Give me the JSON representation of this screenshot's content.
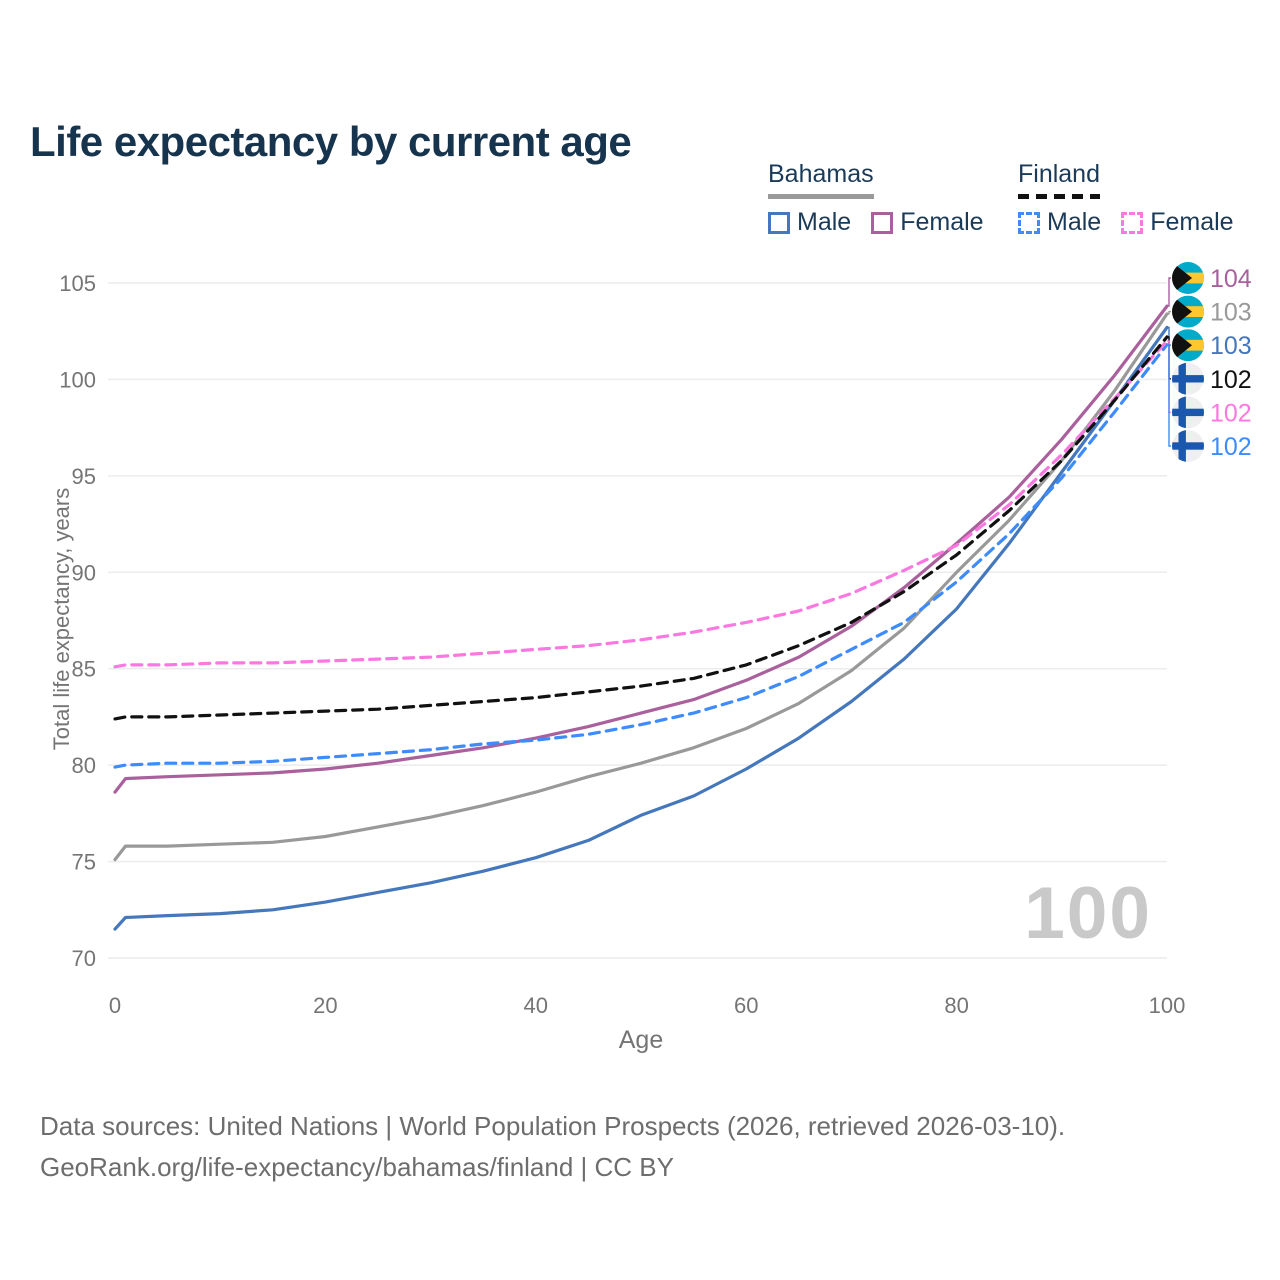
{
  "page": {
    "title": "Life expectancy by current age",
    "watermark_age": "100"
  },
  "legend": {
    "groups": [
      {
        "country": "Bahamas",
        "line_style": "solid",
        "underline_color": "#9a9a9a",
        "items": [
          {
            "label": "Male",
            "color": "#4477bb"
          },
          {
            "label": "Female",
            "color": "#a9609c"
          }
        ]
      },
      {
        "country": "Finland",
        "line_style": "dashed",
        "underline_color": "#111111",
        "items": [
          {
            "label": "Male",
            "color": "#3d8bfd"
          },
          {
            "label": "Female",
            "color": "#fa78e0"
          }
        ]
      }
    ]
  },
  "axes": {
    "y_title": "Total life expectancy, years",
    "x_title": "Age",
    "y_ticks": [
      70,
      75,
      80,
      85,
      90,
      95,
      100,
      105
    ],
    "x_ticks": [
      0,
      20,
      40,
      60,
      80,
      100
    ]
  },
  "chart_data": {
    "type": "line",
    "title": "Life expectancy by current age",
    "xlabel": "Age",
    "ylabel": "Total life expectancy, years",
    "xlim": [
      0,
      100
    ],
    "ylim": [
      70,
      105
    ],
    "grid": "horizontal",
    "legend_position": "top-right",
    "x": [
      0,
      1,
      5,
      10,
      15,
      20,
      25,
      30,
      35,
      40,
      45,
      50,
      55,
      60,
      65,
      70,
      75,
      80,
      85,
      90,
      95,
      100
    ],
    "series": [
      {
        "name": "Bahamas Both sexes",
        "country": "Bahamas",
        "group": "Both sexes",
        "color": "#999999",
        "dash": "solid",
        "values": [
          75.1,
          75.8,
          75.8,
          75.9,
          76.0,
          76.3,
          76.8,
          77.3,
          77.9,
          78.6,
          79.4,
          80.1,
          80.9,
          81.9,
          83.2,
          84.9,
          87.1,
          90.0,
          92.7,
          95.8,
          99.4,
          103.4
        ]
      },
      {
        "name": "Bahamas Male",
        "country": "Bahamas",
        "group": "Male",
        "color": "#4477bb",
        "dash": "solid",
        "values": [
          71.5,
          72.1,
          72.2,
          72.3,
          72.5,
          72.9,
          73.4,
          73.9,
          74.5,
          75.2,
          76.1,
          77.4,
          78.4,
          79.8,
          81.4,
          83.3,
          85.5,
          88.1,
          91.5,
          95.2,
          98.9,
          102.7
        ]
      },
      {
        "name": "Bahamas Female",
        "country": "Bahamas",
        "group": "Female",
        "color": "#a9609c",
        "dash": "solid",
        "values": [
          78.6,
          79.3,
          79.4,
          79.5,
          79.6,
          79.8,
          80.1,
          80.5,
          80.9,
          81.4,
          82.0,
          82.7,
          83.4,
          84.4,
          85.6,
          87.2,
          89.2,
          91.5,
          93.9,
          96.9,
          100.2,
          103.8
        ]
      },
      {
        "name": "Finland Male",
        "country": "Finland",
        "group": "Male",
        "color": "#3d8bfd",
        "dash": "dashed",
        "values": [
          79.9,
          80.0,
          80.1,
          80.1,
          80.2,
          80.4,
          80.6,
          80.8,
          81.1,
          81.3,
          81.6,
          82.1,
          82.7,
          83.5,
          84.6,
          86.0,
          87.4,
          89.5,
          92.0,
          94.9,
          98.3,
          101.8
        ]
      },
      {
        "name": "Finland Female",
        "country": "Finland",
        "group": "Female",
        "color": "#fa78e0",
        "dash": "dashed",
        "values": [
          85.1,
          85.2,
          85.2,
          85.3,
          85.3,
          85.4,
          85.5,
          85.6,
          85.8,
          86.0,
          86.2,
          86.5,
          86.9,
          87.4,
          88.0,
          88.9,
          90.1,
          91.4,
          93.5,
          96.1,
          99.0,
          102.0
        ]
      },
      {
        "name": "Finland Both sexes",
        "country": "Finland",
        "group": "Both sexes",
        "color": "#111111",
        "dash": "dashed",
        "values": [
          82.4,
          82.5,
          82.5,
          82.6,
          82.7,
          82.8,
          82.9,
          83.1,
          83.3,
          83.5,
          83.8,
          84.1,
          84.5,
          85.2,
          86.2,
          87.4,
          89.0,
          90.9,
          93.2,
          95.8,
          98.9,
          102.2
        ]
      }
    ],
    "end_value_labels": [
      {
        "text": "104",
        "series": "Bahamas Female",
        "flag": "bahamas",
        "color": "#a9609c"
      },
      {
        "text": "103",
        "series": "Bahamas Both sexes",
        "flag": "bahamas",
        "color": "#999999"
      },
      {
        "text": "103",
        "series": "Bahamas Male",
        "flag": "bahamas",
        "color": "#4477bb"
      },
      {
        "text": "102",
        "series": "Finland Both sexes",
        "flag": "finland",
        "color": "#111111"
      },
      {
        "text": "102",
        "series": "Finland Female",
        "flag": "finland",
        "color": "#fa78e0"
      },
      {
        "text": "102",
        "series": "Finland Male",
        "flag": "finland",
        "color": "#3d8bfd"
      }
    ]
  },
  "flag_colors": {
    "bahamas_aqua": "#00abc9",
    "bahamas_gold": "#ffc72c",
    "bahamas_black": "#111111",
    "finland_blue": "#1a57ad",
    "finland_bg": "#efefef"
  },
  "footer": {
    "line1": "Data sources: United Nations | World Population Prospects (2026, retrieved 2026-03-10).",
    "line2": "GeoRank.org/life-expectancy/bahamas/finland | CC BY"
  }
}
